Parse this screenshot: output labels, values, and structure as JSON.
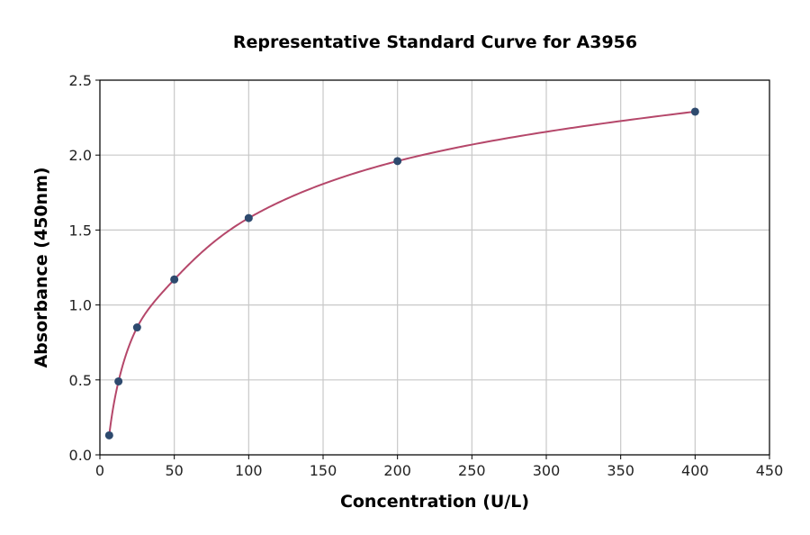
{
  "chart_data": {
    "type": "scatter",
    "title": "Representative Standard Curve for A3956",
    "xlabel": "Concentration (U/L)",
    "ylabel": "Absorbance (450nm)",
    "xlim": [
      0,
      450
    ],
    "ylim": [
      0,
      2.5
    ],
    "x_ticks": [
      "0",
      "50",
      "100",
      "150",
      "200",
      "250",
      "300",
      "350",
      "400",
      "450"
    ],
    "y_ticks": [
      "0.0",
      "0.5",
      "1.0",
      "1.5",
      "2.0",
      "2.5"
    ],
    "grid": true,
    "legend": null,
    "series": [
      {
        "name": "Standard points",
        "type": "scatter",
        "color": "#2e4a6e",
        "x": [
          6.25,
          12.5,
          25,
          50,
          100,
          200,
          400
        ],
        "y": [
          0.13,
          0.49,
          0.85,
          1.17,
          1.58,
          1.96,
          2.29
        ]
      },
      {
        "name": "Fitted curve",
        "type": "line",
        "color": "#b5476a"
      }
    ]
  }
}
